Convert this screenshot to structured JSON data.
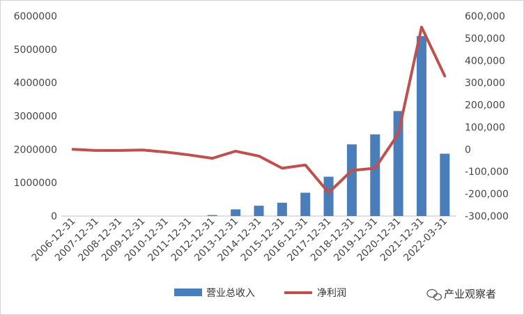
{
  "chart_data": {
    "type": "bar",
    "categories": [
      "2006-12-31",
      "2007-12-31",
      "2008-12-31",
      "2009-12-31",
      "2010-12-31",
      "2011-12-31",
      "2012-12-31",
      "2013-12-31",
      "2014-12-31",
      "2015-12-31",
      "2016-12-31",
      "2017-12-31",
      "2018-12-31",
      "2019-12-31",
      "2020-12-31",
      "2021-12-31",
      "2022-03-31"
    ],
    "series": [
      {
        "name": "营业总收入",
        "type": "bar",
        "axis": "left",
        "color": "#4a7ebb",
        "values": [
          0,
          0,
          0,
          0,
          0,
          0,
          30000,
          200000,
          310000,
          400000,
          700000,
          1180000,
          2150000,
          2450000,
          3150000,
          5400000,
          1870000
        ]
      },
      {
        "name": "净利润",
        "type": "line",
        "axis": "right",
        "color": "#c0504d",
        "values": [
          0,
          -5000,
          -5000,
          -3000,
          -12000,
          -25000,
          -40000,
          -8000,
          -30000,
          -85000,
          -70000,
          -195000,
          -95000,
          -85000,
          70000,
          550000,
          330000
        ]
      }
    ],
    "y_left": {
      "min": 0,
      "max": 6000000,
      "ticks": [
        "0",
        "1000000",
        "2000000",
        "3000000",
        "4000000",
        "5000000",
        "6000000"
      ]
    },
    "y_right": {
      "min": -300000,
      "max": 600000,
      "ticks": [
        "-300,000",
        "-200,000",
        "-100,000",
        "0",
        "100,000",
        "200,000",
        "300,000",
        "400,000",
        "500,000",
        "600,000"
      ]
    },
    "grid": false,
    "legend_position": "bottom"
  },
  "watermark": {
    "text": "产业观察者",
    "icon": "wechat-bubble-icon"
  }
}
